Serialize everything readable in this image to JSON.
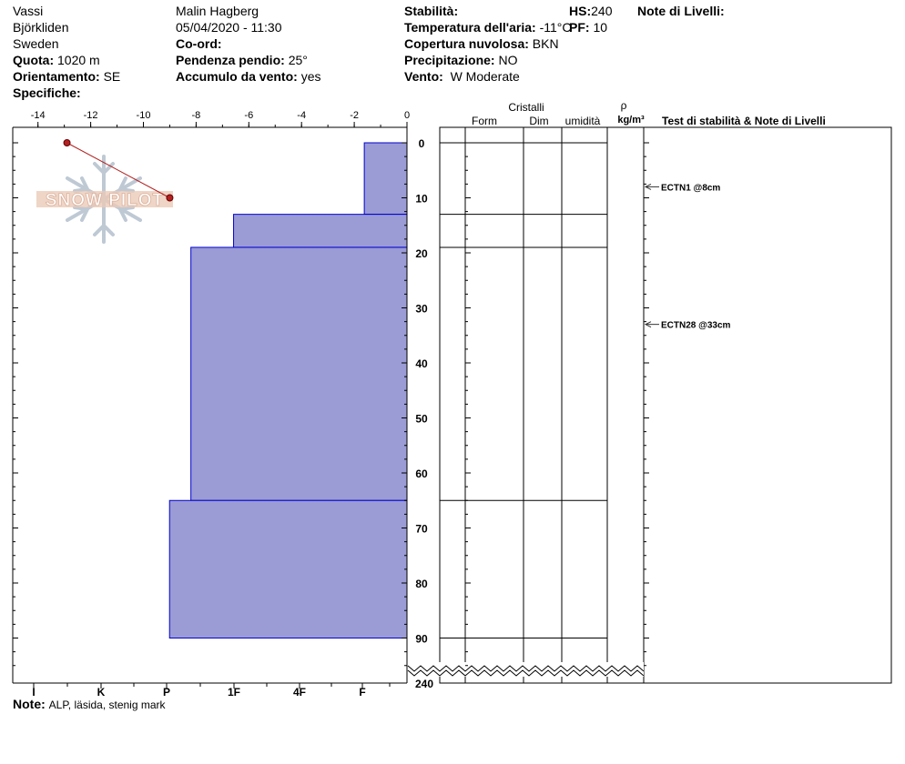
{
  "header": {
    "col1": [
      "Vassi",
      "Björkliden",
      "Sweden"
    ],
    "quota_label": "Quota:",
    "quota_value": "1020 m",
    "orient_label": "Orientamento:",
    "orient_value": "SE",
    "spec_label": "Specifiche:",
    "observer": "Malin Hagberg",
    "datetime": "05/04/2020 - 11:30",
    "coord_label": "Co-ord:",
    "slope_label": "Pendenza pendio:",
    "slope_value": "25°",
    "wind_load_label": "Accumulo da vento:",
    "wind_load_value": "yes",
    "stab_label": "Stabilità:",
    "air_temp_label": "Temperatura dell'aria:",
    "air_temp_value": "-11°C",
    "cloud_label": "Copertura nuvolosa:",
    "cloud_value": "BKN",
    "precip_label": "Precipitazione:",
    "precip_value": "NO",
    "wind_label": "Vento:",
    "wind_value": "W Moderate",
    "hs_label": "HS:",
    "hs_value": "240",
    "pf_label": "PF:",
    "pf_value": "10",
    "layer_notes_label": "Note di Livelli:"
  },
  "footer": {
    "note_label": "Note:",
    "note_value": "ALP, läsida, stenig mark"
  },
  "table": {
    "cristalli": "Cristalli",
    "form": "Form",
    "dim": "Dim",
    "umidita": "umidità",
    "rho": "ρ",
    "rho_unit": "kg/m³",
    "tests_header": "Test di stabilità & Note di Livelli"
  },
  "chart_data": {
    "type": "snow_profile",
    "temperature_axis": {
      "ticks": [
        -14,
        -12,
        -10,
        -8,
        -6,
        -4,
        -2,
        0
      ],
      "range": [
        -14.5,
        0
      ]
    },
    "hardness_axis": {
      "labels": [
        "I",
        "K",
        "P",
        "1F",
        "4F",
        "F"
      ]
    },
    "depth_axis": {
      "ticks": [
        0,
        10,
        20,
        30,
        40,
        50,
        60,
        70,
        80,
        90
      ],
      "bottom_label": "240"
    },
    "temperature_profile": [
      {
        "depth": 0,
        "temp": -12.9
      },
      {
        "depth": 10,
        "temp": -9.0
      }
    ],
    "hardness_layers": [
      {
        "top": 0,
        "bottom": 13,
        "hardness": 1.6
      },
      {
        "top": 13,
        "bottom": 19,
        "hardness": 6.5
      },
      {
        "top": 19,
        "bottom": 65,
        "hardness": 8.1
      },
      {
        "top": 65,
        "bottom": 90,
        "hardness": 8.9
      }
    ],
    "layer_boundaries": [
      0,
      13,
      19,
      65,
      90
    ],
    "stability_tests": [
      {
        "depth": 8,
        "label": "ECTN1 @8cm"
      },
      {
        "depth": 33,
        "label": "ECTN28 @33cm"
      }
    ],
    "colors": {
      "layer_fill": "#9b9bd6",
      "layer_edge": "#0000cc",
      "temp_line": "#b22222"
    },
    "logo_text": "SNOW PILOT"
  }
}
